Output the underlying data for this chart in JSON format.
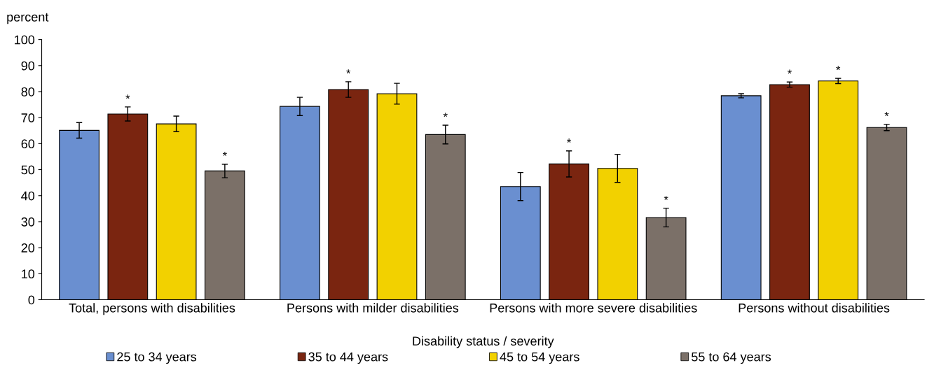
{
  "chart_data": {
    "type": "bar",
    "ylabel": "percent",
    "xlabel": "Disability status / severity",
    "categories": [
      "Total, persons with disabilities",
      "Persons with milder disabilities",
      "Persons with more severe disabilities",
      "Persons without disabilities"
    ],
    "series": [
      {
        "name": "25 to 34 years",
        "color": "#6a8fd0",
        "values": [
          65.1,
          74.3,
          43.5,
          78.4
        ],
        "errors": [
          3.0,
          3.5,
          5.4,
          0.8
        ],
        "value_labels": [
          null,
          null,
          null,
          null
        ]
      },
      {
        "name": "35 to 44 years",
        "color": "#7a2510",
        "values": [
          71.4,
          80.8,
          52.2,
          82.7
        ],
        "errors": [
          2.7,
          3.0,
          5.0,
          1.0
        ],
        "value_labels": [
          "*",
          "*",
          "*",
          "*"
        ]
      },
      {
        "name": "45 to 54 years",
        "color": "#f2d100",
        "values": [
          67.6,
          79.2,
          50.5,
          84.1
        ],
        "errors": [
          3.0,
          4.0,
          5.4,
          1.0
        ],
        "value_labels": [
          null,
          null,
          null,
          "*"
        ]
      },
      {
        "name": "55 to 64 years",
        "color": "#7b7068",
        "values": [
          49.5,
          63.5,
          31.6,
          66.2
        ],
        "errors": [
          2.6,
          3.6,
          3.6,
          1.2
        ],
        "value_labels": [
          "*",
          "*",
          "*",
          "*"
        ]
      }
    ],
    "ylim": [
      0,
      100
    ],
    "yticks": [
      0,
      10,
      20,
      30,
      40,
      50,
      60,
      70,
      80,
      90,
      100
    ],
    "grid": false,
    "legend": "bottom"
  }
}
